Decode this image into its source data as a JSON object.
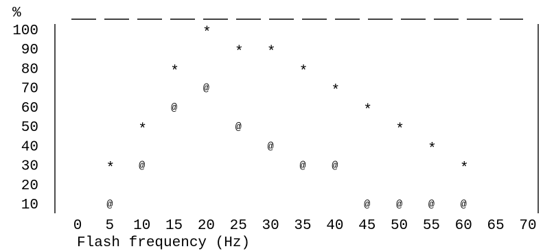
{
  "chart_data": {
    "type": "scatter",
    "title": "",
    "ylabel": "%",
    "xlabel": "Flash frequency (Hz)",
    "xlim": [
      0,
      70
    ],
    "ylim": [
      10,
      100
    ],
    "x_ticks": [
      "0",
      "5",
      "10",
      "15",
      "20",
      "25",
      "30",
      "35",
      "40",
      "45",
      "50",
      "55",
      "60",
      "65",
      "70"
    ],
    "y_ticks": [
      "100",
      "90",
      "80",
      "70",
      "60",
      "50",
      "40",
      "30",
      "20",
      "10"
    ],
    "grid": false,
    "legend": "none",
    "series": [
      {
        "marker": "*",
        "x": [
          5,
          10,
          15,
          20,
          25,
          30,
          35,
          40,
          45,
          50,
          55,
          60
        ],
        "y": [
          30,
          50,
          80,
          100,
          90,
          90,
          80,
          70,
          60,
          50,
          40,
          30
        ]
      },
      {
        "marker": "@",
        "x": [
          5,
          10,
          15,
          20,
          25,
          30,
          35,
          40,
          45,
          50,
          55,
          60
        ],
        "y": [
          10,
          30,
          60,
          70,
          50,
          40,
          30,
          30,
          10,
          10,
          10,
          10
        ]
      }
    ]
  }
}
